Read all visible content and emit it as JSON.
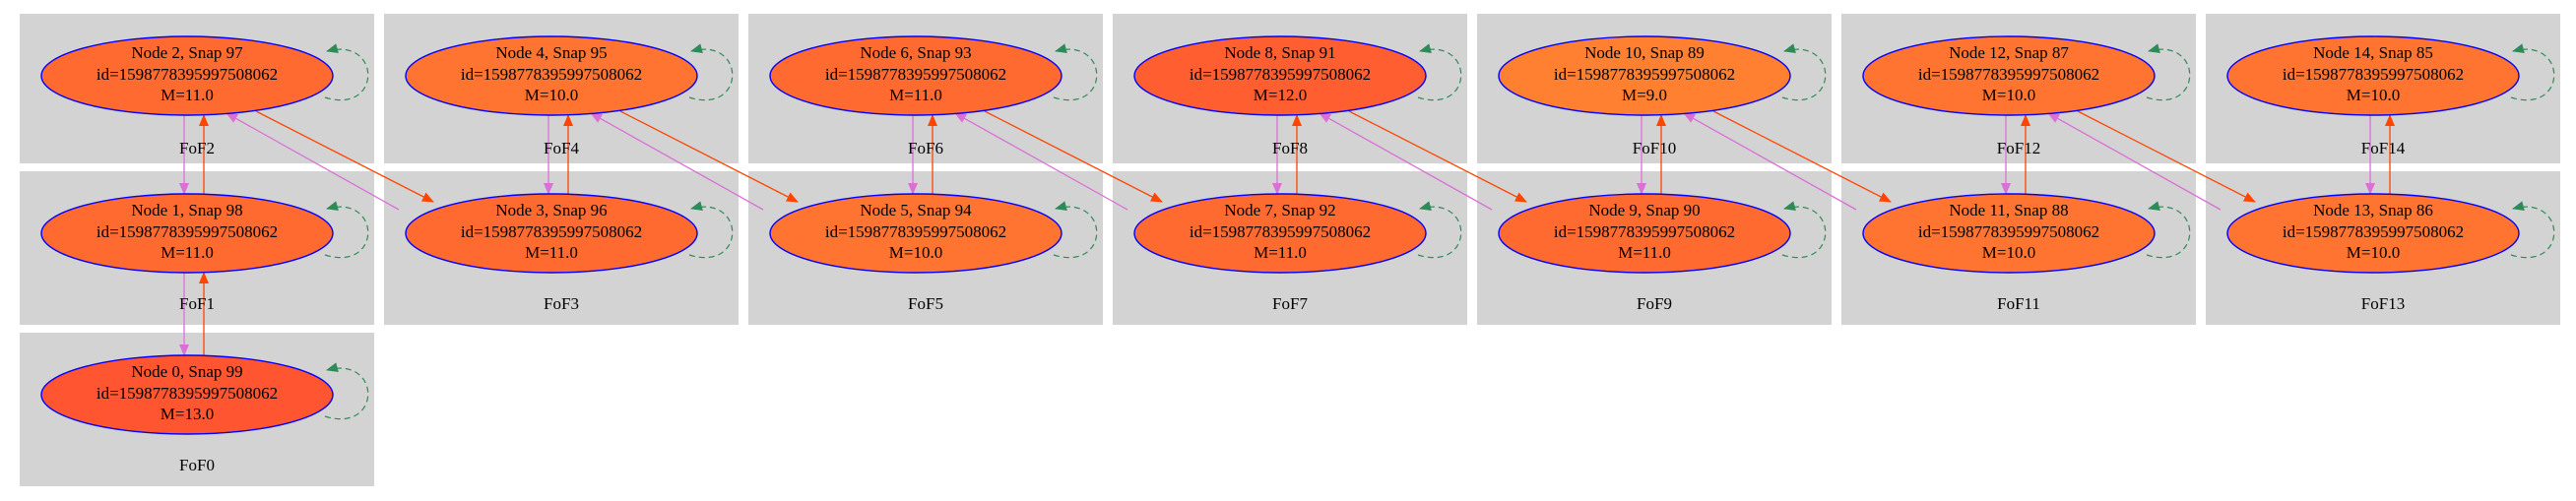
{
  "graph": {
    "edge_colors": {
      "progenitor": "#ff4500",
      "descendant": "#da70d6",
      "self": "#2e8b57"
    },
    "node_outline": "#0000ff",
    "cluster_fill": "#d3d3d3",
    "clusters": [
      {
        "label": "FoF0"
      },
      {
        "label": "FoF1"
      },
      {
        "label": "FoF2"
      },
      {
        "label": "FoF3"
      },
      {
        "label": "FoF4"
      },
      {
        "label": "FoF5"
      },
      {
        "label": "FoF6"
      },
      {
        "label": "FoF7"
      },
      {
        "label": "FoF8"
      },
      {
        "label": "FoF9"
      },
      {
        "label": "FoF10"
      },
      {
        "label": "FoF11"
      },
      {
        "label": "FoF12"
      },
      {
        "label": "FoF13"
      },
      {
        "label": "FoF14"
      }
    ],
    "nodes": [
      {
        "title": "Node 0, Snap 99",
        "id_line": "id=159877839599750806​2",
        "mass": "M=13.0",
        "fill": "#ff5530"
      },
      {
        "title": "Node 1, Snap 98",
        "id_line": "id=1598778395997508062",
        "mass": "M=11.0",
        "fill": "#ff6a30"
      },
      {
        "title": "Node 2, Snap 97",
        "id_line": "id=1598778395997508062",
        "mass": "M=11.0",
        "fill": "#ff6a30"
      },
      {
        "title": "Node 3, Snap 96",
        "id_line": "id=1598778395997508062",
        "mass": "M=11.0",
        "fill": "#ff6a30"
      },
      {
        "title": "Node 4, Snap 95",
        "id_line": "id=1598778395997508062",
        "mass": "M=10.0",
        "fill": "#ff7430"
      },
      {
        "title": "Node 5, Snap 94",
        "id_line": "id=1598778395997508062",
        "mass": "M=10.0",
        "fill": "#ff7430"
      },
      {
        "title": "Node 6, Snap 93",
        "id_line": "id=1598778395997508062",
        "mass": "M=11.0",
        "fill": "#ff6a30"
      },
      {
        "title": "Node 7, Snap 92",
        "id_line": "id=1598778395997508062",
        "mass": "M=11.0",
        "fill": "#ff6a30"
      },
      {
        "title": "Node 8, Snap 91",
        "id_line": "id=1598778395997508062",
        "mass": "M=12.0",
        "fill": "#ff5f30"
      },
      {
        "title": "Node 9, Snap 90",
        "id_line": "id=1598778395997508062",
        "mass": "M=11.0",
        "fill": "#ff6a30"
      },
      {
        "title": "Node 10, Snap 89",
        "id_line": "id=1598778395997508062",
        "mass": "M=9.0",
        "fill": "#ff8030"
      },
      {
        "title": "Node 11, Snap 88",
        "id_line": "id=1598778395997508062",
        "mass": "M=10.0",
        "fill": "#ff7430"
      },
      {
        "title": "Node 12, Snap 87",
        "id_line": "id=1598778395997508062",
        "mass": "M=10.0",
        "fill": "#ff7430"
      },
      {
        "title": "Node 13, Snap 86",
        "id_line": "id=1598778395997508062",
        "mass": "M=10.0",
        "fill": "#ff7430"
      },
      {
        "title": "Node 14, Snap 85",
        "id_line": "id=1598778395997508062",
        "mass": "M=10.0",
        "fill": "#ff7430"
      }
    ],
    "edges": [
      {
        "from": 1,
        "to": 0
      },
      {
        "from": 2,
        "to": 1
      },
      {
        "from": 3,
        "to": 2
      },
      {
        "from": 4,
        "to": 3
      },
      {
        "from": 5,
        "to": 4
      },
      {
        "from": 6,
        "to": 5
      },
      {
        "from": 7,
        "to": 6
      },
      {
        "from": 8,
        "to": 7
      },
      {
        "from": 9,
        "to": 8
      },
      {
        "from": 10,
        "to": 9
      },
      {
        "from": 11,
        "to": 10
      },
      {
        "from": 12,
        "to": 11
      },
      {
        "from": 13,
        "to": 12
      },
      {
        "from": 14,
        "to": 13
      }
    ]
  }
}
